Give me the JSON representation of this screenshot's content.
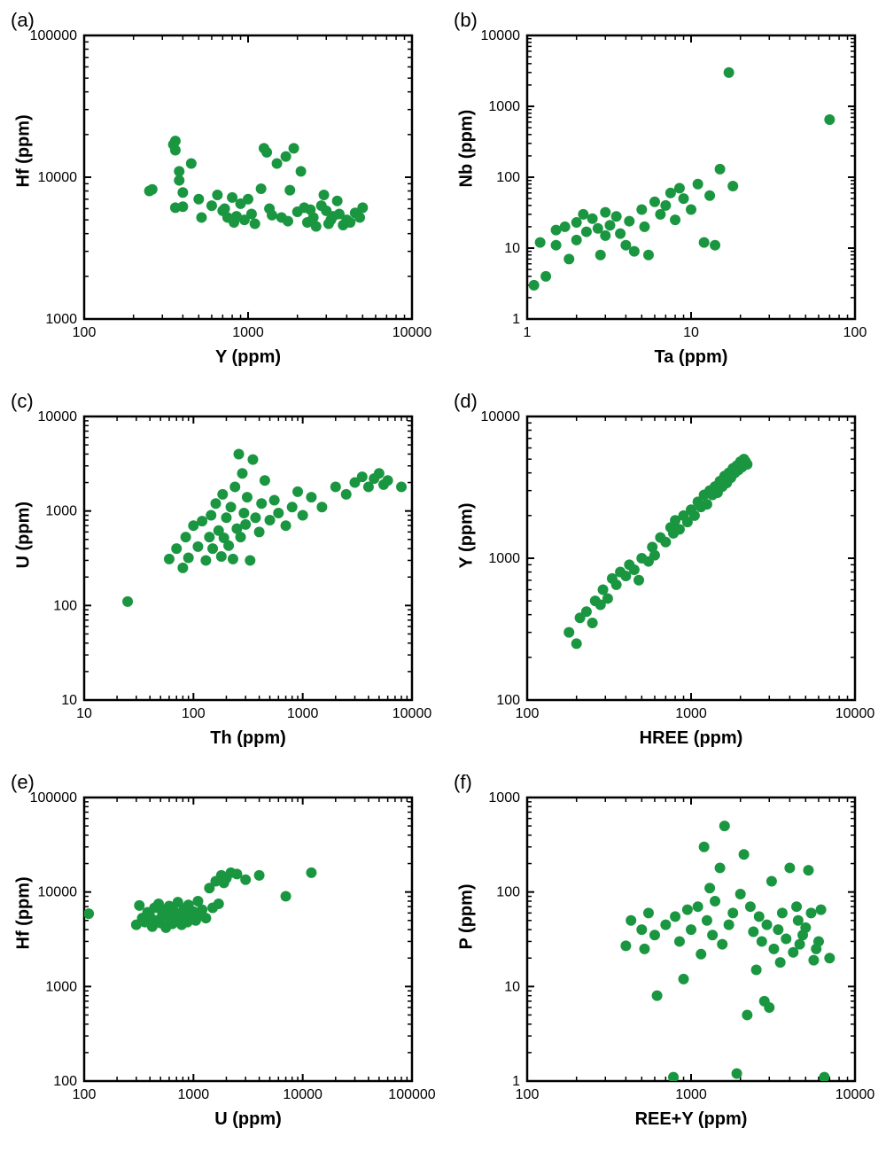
{
  "figure": {
    "background_color": "#ffffff",
    "marker_color": "#1a9641",
    "marker_radius": 6,
    "axis_line_width": 2.5,
    "tick_line_width": 2,
    "tick_length": 8,
    "minor_tick_length": 5,
    "text_color": "#000000",
    "label_fontsize": 20,
    "panel_label_fontsize": 22,
    "tick_fontsize": 16
  },
  "panels": [
    {
      "id": "a",
      "panel_label": "(a)",
      "xlabel": "Y (ppm)",
      "ylabel": "Hf (ppm)",
      "xlim": [
        100,
        10000
      ],
      "ylim": [
        1000,
        100000
      ],
      "xticks": [
        100,
        1000,
        10000
      ],
      "yticks": [
        1000,
        10000,
        100000
      ],
      "data": [
        [
          250,
          8000
        ],
        [
          260,
          8200
        ],
        [
          350,
          17000
        ],
        [
          360,
          15500
        ],
        [
          360,
          18000
        ],
        [
          360,
          6100
        ],
        [
          380,
          11000
        ],
        [
          380,
          9500
        ],
        [
          400,
          7800
        ],
        [
          400,
          6200
        ],
        [
          450,
          12500
        ],
        [
          500,
          7000
        ],
        [
          520,
          5200
        ],
        [
          600,
          6300
        ],
        [
          650,
          7500
        ],
        [
          700,
          5800
        ],
        [
          720,
          6000
        ],
        [
          750,
          5200
        ],
        [
          800,
          7200
        ],
        [
          820,
          4800
        ],
        [
          850,
          5300
        ],
        [
          900,
          6500
        ],
        [
          950,
          5000
        ],
        [
          1000,
          7000
        ],
        [
          1050,
          5500
        ],
        [
          1100,
          4700
        ],
        [
          1200,
          8300
        ],
        [
          1250,
          16000
        ],
        [
          1300,
          15000
        ],
        [
          1350,
          6000
        ],
        [
          1400,
          5400
        ],
        [
          1500,
          12500
        ],
        [
          1600,
          5200
        ],
        [
          1700,
          14000
        ],
        [
          1750,
          4900
        ],
        [
          1800,
          8100
        ],
        [
          1900,
          16000
        ],
        [
          2000,
          5700
        ],
        [
          2100,
          11000
        ],
        [
          2200,
          6100
        ],
        [
          2300,
          4800
        ],
        [
          2400,
          5900
        ],
        [
          2500,
          5200
        ],
        [
          2600,
          4500
        ],
        [
          2800,
          6300
        ],
        [
          2900,
          7500
        ],
        [
          3000,
          5800
        ],
        [
          3100,
          4700
        ],
        [
          3200,
          5000
        ],
        [
          3300,
          5300
        ],
        [
          3500,
          6800
        ],
        [
          3600,
          5500
        ],
        [
          3800,
          4600
        ],
        [
          4000,
          5000
        ],
        [
          4200,
          4800
        ],
        [
          4500,
          5600
        ],
        [
          4800,
          5200
        ],
        [
          5000,
          6100
        ]
      ]
    },
    {
      "id": "b",
      "panel_label": "(b)",
      "xlabel": "Ta (ppm)",
      "ylabel": "Nb (ppm)",
      "xlim": [
        1,
        100
      ],
      "ylim": [
        1,
        10000
      ],
      "xticks": [
        1,
        10,
        100
      ],
      "yticks": [
        1,
        10,
        100,
        1000,
        10000
      ],
      "data": [
        [
          1.1,
          3
        ],
        [
          1.2,
          12
        ],
        [
          1.3,
          4
        ],
        [
          1.5,
          18
        ],
        [
          1.5,
          11
        ],
        [
          1.7,
          20
        ],
        [
          1.8,
          7
        ],
        [
          2.0,
          23
        ],
        [
          2.0,
          13
        ],
        [
          2.2,
          30
        ],
        [
          2.3,
          17
        ],
        [
          2.5,
          26
        ],
        [
          2.7,
          19
        ],
        [
          2.8,
          8
        ],
        [
          3.0,
          32
        ],
        [
          3.0,
          15
        ],
        [
          3.2,
          21
        ],
        [
          3.5,
          28
        ],
        [
          3.7,
          16
        ],
        [
          4.0,
          11
        ],
        [
          4.2,
          24
        ],
        [
          4.5,
          9
        ],
        [
          5.0,
          35
        ],
        [
          5.2,
          20
        ],
        [
          5.5,
          8
        ],
        [
          6.0,
          45
        ],
        [
          6.5,
          30
        ],
        [
          7.0,
          40
        ],
        [
          7.5,
          60
        ],
        [
          8.0,
          25
        ],
        [
          8.5,
          70
        ],
        [
          9.0,
          50
        ],
        [
          10.0,
          35
        ],
        [
          11.0,
          80
        ],
        [
          12.0,
          12
        ],
        [
          13.0,
          55
        ],
        [
          14.0,
          11
        ],
        [
          15.0,
          130
        ],
        [
          17.0,
          3000
        ],
        [
          18.0,
          75
        ],
        [
          70.0,
          650
        ]
      ]
    },
    {
      "id": "c",
      "panel_label": "(c)",
      "xlabel": "Th (ppm)",
      "ylabel": "U (ppm)",
      "xlim": [
        10,
        10000
      ],
      "ylim": [
        10,
        10000
      ],
      "xticks": [
        10,
        100,
        1000,
        10000
      ],
      "yticks": [
        10,
        100,
        1000,
        10000
      ],
      "data": [
        [
          25,
          110
        ],
        [
          60,
          310
        ],
        [
          70,
          400
        ],
        [
          80,
          250
        ],
        [
          85,
          530
        ],
        [
          90,
          320
        ],
        [
          100,
          700
        ],
        [
          110,
          420
        ],
        [
          120,
          780
        ],
        [
          130,
          300
        ],
        [
          140,
          530
        ],
        [
          145,
          900
        ],
        [
          150,
          400
        ],
        [
          160,
          1200
        ],
        [
          170,
          620
        ],
        [
          180,
          330
        ],
        [
          185,
          1500
        ],
        [
          190,
          520
        ],
        [
          200,
          850
        ],
        [
          210,
          430
        ],
        [
          220,
          1100
        ],
        [
          230,
          310
        ],
        [
          240,
          1800
        ],
        [
          250,
          650
        ],
        [
          260,
          4000
        ],
        [
          270,
          530
        ],
        [
          280,
          2500
        ],
        [
          290,
          950
        ],
        [
          300,
          720
        ],
        [
          310,
          1400
        ],
        [
          330,
          300
        ],
        [
          350,
          3500
        ],
        [
          370,
          850
        ],
        [
          400,
          600
        ],
        [
          420,
          1200
        ],
        [
          450,
          2100
        ],
        [
          500,
          800
        ],
        [
          550,
          1300
        ],
        [
          600,
          950
        ],
        [
          700,
          700
        ],
        [
          800,
          1100
        ],
        [
          900,
          1600
        ],
        [
          1000,
          900
        ],
        [
          1200,
          1400
        ],
        [
          1500,
          1100
        ],
        [
          2000,
          1800
        ],
        [
          2500,
          1500
        ],
        [
          3000,
          2000
        ],
        [
          3500,
          2300
        ],
        [
          4000,
          1800
        ],
        [
          4500,
          2200
        ],
        [
          5000,
          2500
        ],
        [
          5500,
          1900
        ],
        [
          6000,
          2100
        ],
        [
          8000,
          1800
        ]
      ]
    },
    {
      "id": "d",
      "panel_label": "(d)",
      "xlabel": "HREE (ppm)",
      "ylabel": "Y (ppm)",
      "xlim": [
        100,
        10000
      ],
      "ylim": [
        100,
        10000
      ],
      "xticks": [
        100,
        1000,
        10000
      ],
      "yticks": [
        100,
        1000,
        10000
      ],
      "data": [
        [
          180,
          300
        ],
        [
          200,
          250
        ],
        [
          210,
          380
        ],
        [
          230,
          420
        ],
        [
          250,
          350
        ],
        [
          260,
          500
        ],
        [
          280,
          470
        ],
        [
          290,
          600
        ],
        [
          310,
          520
        ],
        [
          330,
          720
        ],
        [
          350,
          650
        ],
        [
          370,
          800
        ],
        [
          400,
          750
        ],
        [
          420,
          900
        ],
        [
          450,
          830
        ],
        [
          480,
          700
        ],
        [
          500,
          1000
        ],
        [
          550,
          950
        ],
        [
          580,
          1200
        ],
        [
          600,
          1050
        ],
        [
          650,
          1400
        ],
        [
          700,
          1300
        ],
        [
          750,
          1650
        ],
        [
          780,
          1500
        ],
        [
          800,
          1850
        ],
        [
          850,
          1600
        ],
        [
          900,
          2000
        ],
        [
          950,
          1800
        ],
        [
          1000,
          2200
        ],
        [
          1050,
          2000
        ],
        [
          1100,
          2500
        ],
        [
          1150,
          2300
        ],
        [
          1200,
          2800
        ],
        [
          1250,
          2400
        ],
        [
          1300,
          3000
        ],
        [
          1350,
          2800
        ],
        [
          1400,
          3200
        ],
        [
          1450,
          2900
        ],
        [
          1500,
          3500
        ],
        [
          1550,
          3200
        ],
        [
          1600,
          3800
        ],
        [
          1650,
          3400
        ],
        [
          1700,
          4000
        ],
        [
          1750,
          3700
        ],
        [
          1800,
          4300
        ],
        [
          1850,
          4000
        ],
        [
          1900,
          4500
        ],
        [
          1950,
          4200
        ],
        [
          2000,
          4800
        ],
        [
          2050,
          4400
        ],
        [
          2100,
          5000
        ],
        [
          2150,
          4800
        ],
        [
          2200,
          4600
        ]
      ]
    },
    {
      "id": "e",
      "panel_label": "(e)",
      "xlabel": "U (ppm)",
      "ylabel": "Hf (ppm)",
      "xlim": [
        100,
        100000
      ],
      "ylim": [
        100,
        100000
      ],
      "xticks": [
        100,
        1000,
        10000,
        100000
      ],
      "yticks": [
        100,
        1000,
        10000,
        100000
      ],
      "data": [
        [
          110,
          5900
        ],
        [
          300,
          4500
        ],
        [
          320,
          7200
        ],
        [
          340,
          5300
        ],
        [
          360,
          4800
        ],
        [
          380,
          6100
        ],
        [
          400,
          5500
        ],
        [
          420,
          4300
        ],
        [
          440,
          6800
        ],
        [
          460,
          5000
        ],
        [
          480,
          7500
        ],
        [
          500,
          4700
        ],
        [
          520,
          5900
        ],
        [
          540,
          6500
        ],
        [
          560,
          4200
        ],
        [
          580,
          5600
        ],
        [
          600,
          7100
        ],
        [
          620,
          5000
        ],
        [
          640,
          4600
        ],
        [
          660,
          6300
        ],
        [
          680,
          5400
        ],
        [
          700,
          4900
        ],
        [
          720,
          7800
        ],
        [
          740,
          5200
        ],
        [
          760,
          6000
        ],
        [
          780,
          4500
        ],
        [
          800,
          5800
        ],
        [
          820,
          6700
        ],
        [
          850,
          5100
        ],
        [
          880,
          4800
        ],
        [
          900,
          7300
        ],
        [
          950,
          5500
        ],
        [
          1000,
          6200
        ],
        [
          1050,
          5000
        ],
        [
          1100,
          8000
        ],
        [
          1150,
          5600
        ],
        [
          1200,
          6500
        ],
        [
          1300,
          5300
        ],
        [
          1400,
          11000
        ],
        [
          1500,
          6800
        ],
        [
          1600,
          13000
        ],
        [
          1700,
          7500
        ],
        [
          1800,
          15000
        ],
        [
          1900,
          12500
        ],
        [
          2000,
          14000
        ],
        [
          2200,
          16000
        ],
        [
          2500,
          15500
        ],
        [
          3000,
          13500
        ],
        [
          4000,
          15000
        ],
        [
          7000,
          9000
        ],
        [
          12000,
          16000
        ]
      ]
    },
    {
      "id": "f",
      "panel_label": "(f)",
      "xlabel": "REE+Y (ppm)",
      "ylabel": "P (ppm)",
      "xlim": [
        100,
        10000
      ],
      "ylim": [
        1,
        1000
      ],
      "xticks": [
        100,
        1000,
        10000
      ],
      "yticks": [
        1,
        10,
        100,
        1000
      ],
      "data": [
        [
          400,
          27
        ],
        [
          430,
          50
        ],
        [
          500,
          40
        ],
        [
          520,
          25
        ],
        [
          550,
          60
        ],
        [
          600,
          35
        ],
        [
          620,
          8
        ],
        [
          700,
          45
        ],
        [
          780,
          1.1
        ],
        [
          800,
          55
        ],
        [
          850,
          30
        ],
        [
          900,
          12
        ],
        [
          950,
          65
        ],
        [
          1000,
          40
        ],
        [
          1100,
          70
        ],
        [
          1150,
          22
        ],
        [
          1200,
          300
        ],
        [
          1250,
          50
        ],
        [
          1300,
          110
        ],
        [
          1350,
          35
        ],
        [
          1400,
          80
        ],
        [
          1500,
          180
        ],
        [
          1550,
          28
        ],
        [
          1600,
          500
        ],
        [
          1700,
          45
        ],
        [
          1800,
          60
        ],
        [
          1900,
          1.2
        ],
        [
          2000,
          95
        ],
        [
          2100,
          250
        ],
        [
          2200,
          5
        ],
        [
          2300,
          70
        ],
        [
          2400,
          38
        ],
        [
          2500,
          15
        ],
        [
          2600,
          55
        ],
        [
          2700,
          30
        ],
        [
          2800,
          7
        ],
        [
          2900,
          45
        ],
        [
          3000,
          6
        ],
        [
          3100,
          130
        ],
        [
          3200,
          25
        ],
        [
          3400,
          40
        ],
        [
          3500,
          18
        ],
        [
          3600,
          60
        ],
        [
          3800,
          32
        ],
        [
          4000,
          180
        ],
        [
          4200,
          23
        ],
        [
          4400,
          70
        ],
        [
          4500,
          50
        ],
        [
          4600,
          28
        ],
        [
          4800,
          35
        ],
        [
          5000,
          42
        ],
        [
          5200,
          170
        ],
        [
          5400,
          60
        ],
        [
          5600,
          19
        ],
        [
          5800,
          25
        ],
        [
          6000,
          30
        ],
        [
          6200,
          65
        ],
        [
          6500,
          1.1
        ],
        [
          7000,
          20
        ]
      ]
    }
  ]
}
